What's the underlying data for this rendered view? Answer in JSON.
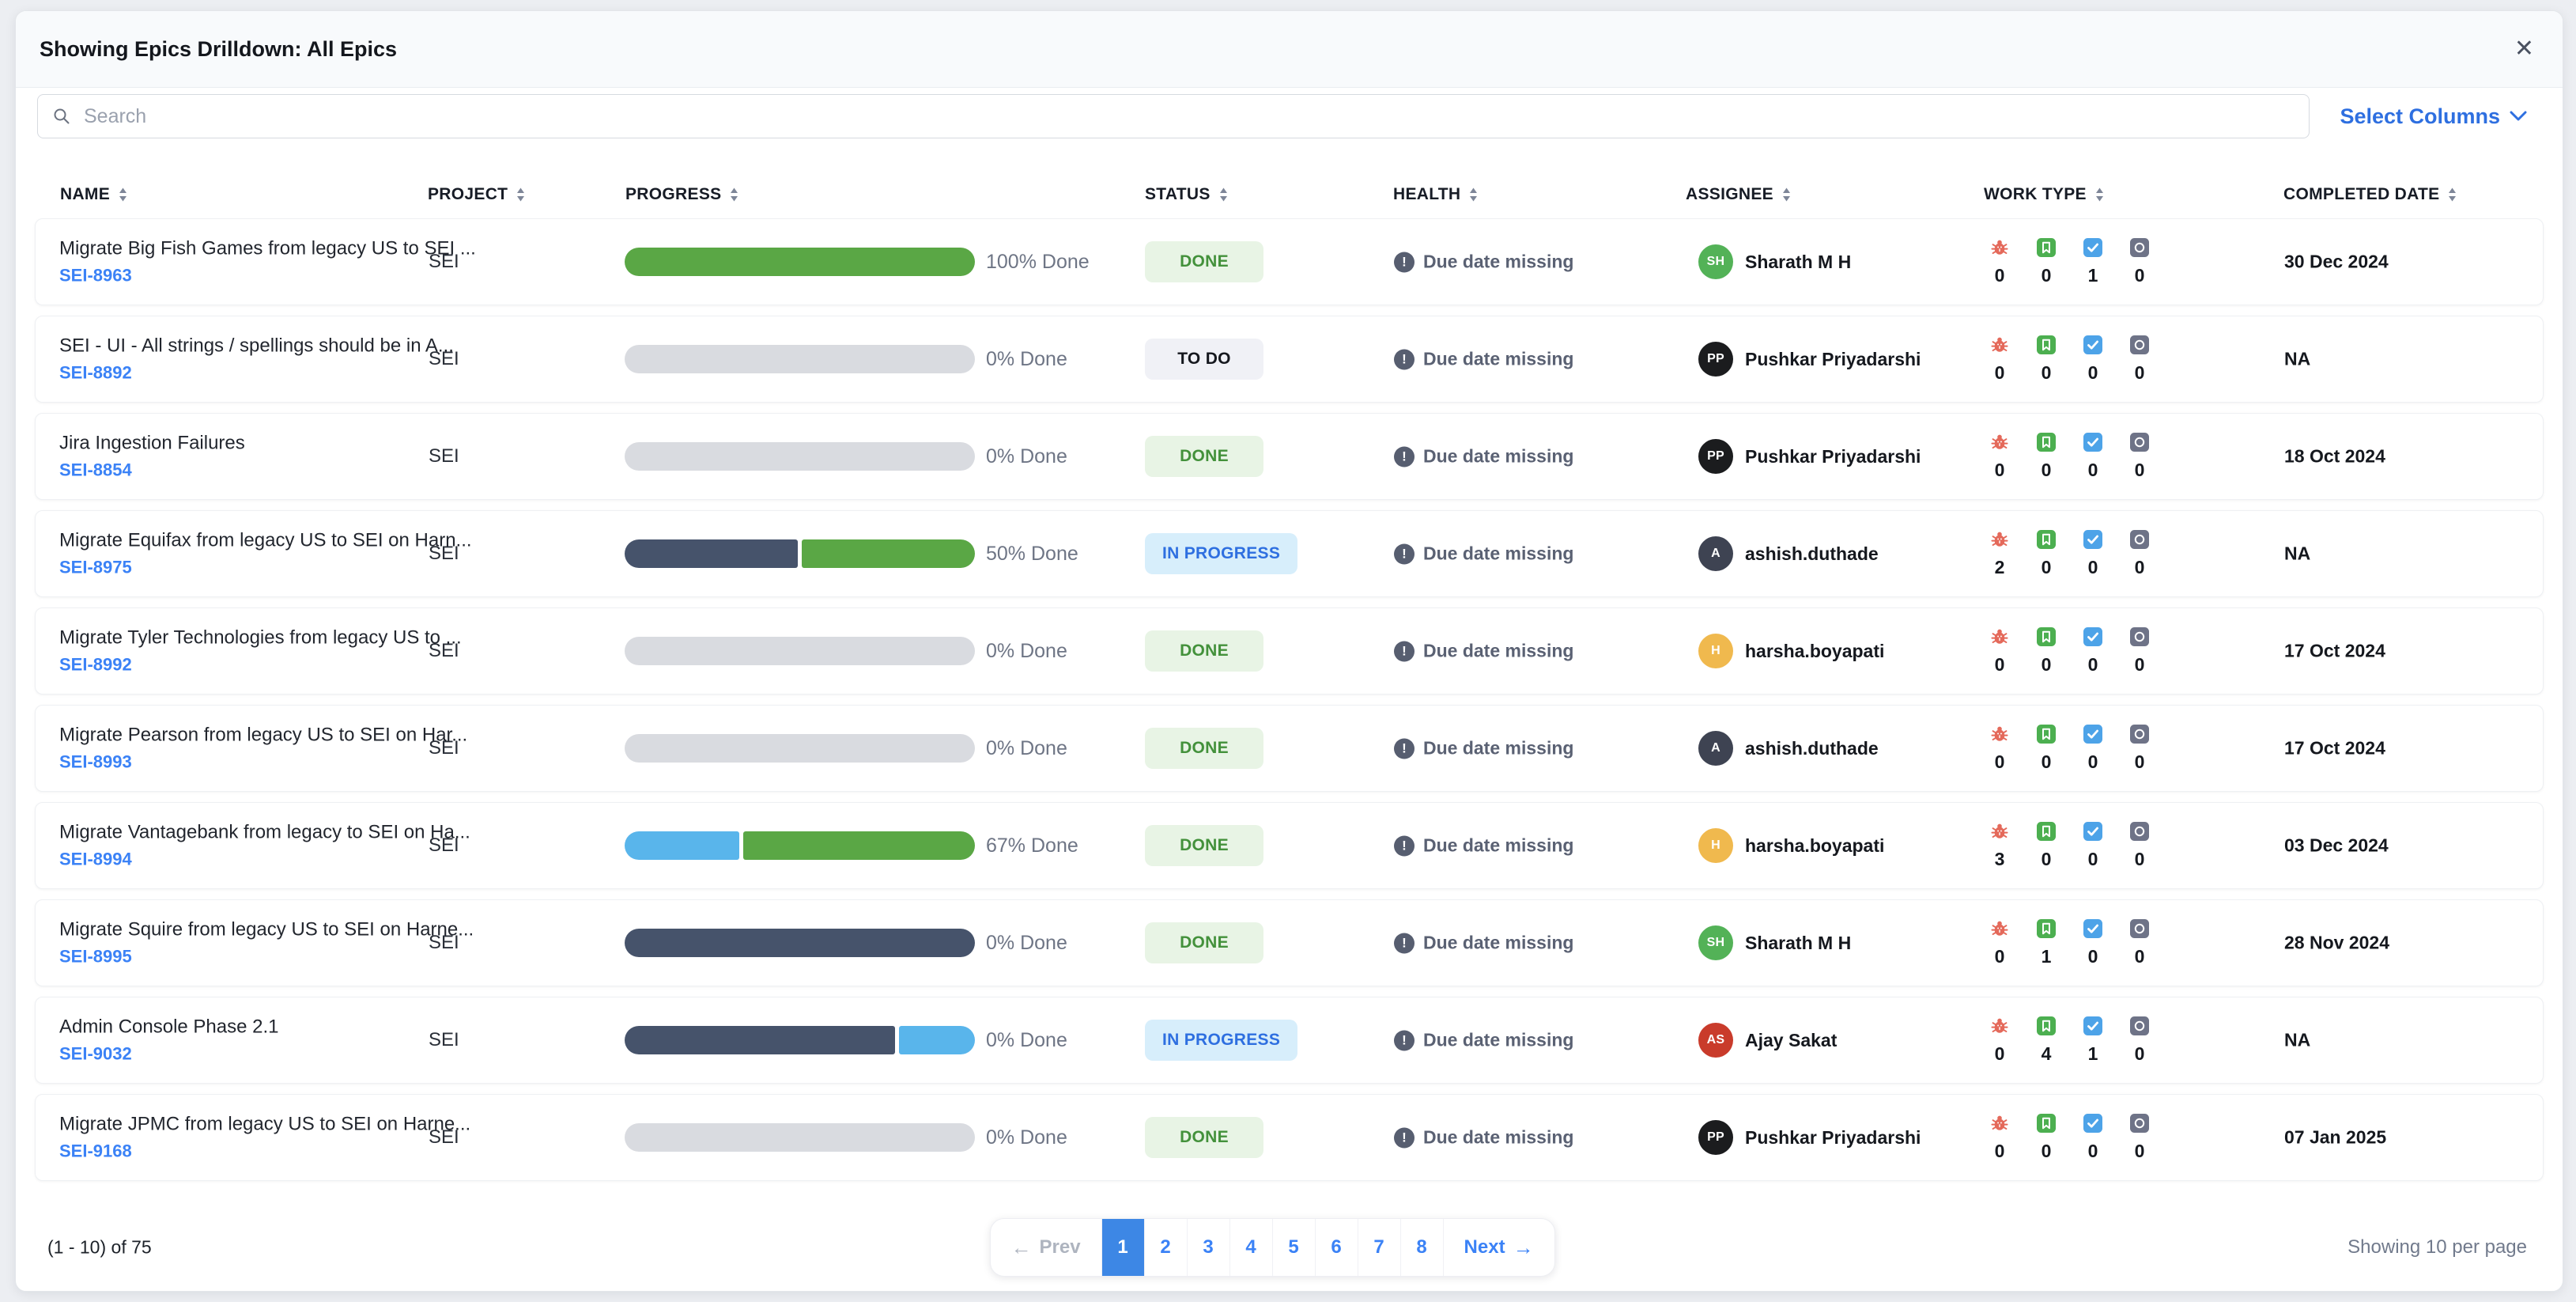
{
  "header": {
    "title": "Showing Epics Drilldown: All Epics",
    "close_glyph": "✕"
  },
  "toolbar": {
    "search_placeholder": "Search",
    "select_columns_label": "Select Columns"
  },
  "columns": [
    {
      "key": "name",
      "label": "NAME"
    },
    {
      "key": "project",
      "label": "PROJECT"
    },
    {
      "key": "progress",
      "label": "PROGRESS"
    },
    {
      "key": "status",
      "label": "STATUS"
    },
    {
      "key": "health",
      "label": "HEALTH"
    },
    {
      "key": "assignee",
      "label": "ASSIGNEE"
    },
    {
      "key": "worktype",
      "label": "WORK TYPE"
    },
    {
      "key": "completed-date",
      "label": "COMPLETED DATE"
    }
  ],
  "work_types": [
    {
      "key": "bug",
      "icon": "bug-icon"
    },
    {
      "key": "story",
      "icon": "story-icon"
    },
    {
      "key": "task",
      "icon": "task-icon"
    },
    {
      "key": "other",
      "icon": "other-icon"
    }
  ],
  "status_styles": {
    "done": {
      "label": "DONE",
      "bg": "#E8F4E5",
      "fg": "#43913B"
    },
    "todo": {
      "label": "TO DO",
      "bg": "#F0F1F6",
      "fg": "#15181E"
    },
    "in_progress": {
      "label": "IN PROGRESS",
      "bg": "#D7EEFB",
      "fg": "#2E6FE0"
    }
  },
  "colors": {
    "progress": {
      "green": "#5AA745",
      "gray": "#D9DBE0",
      "navy": "#46536B",
      "lightblue": "#59B5EB"
    },
    "avatar": {
      "green": "#53B257",
      "black": "#1B1C1E",
      "slate": "#3E4352",
      "yellow": "#F0B94E",
      "red": "#C93B2B"
    }
  },
  "rows": [
    {
      "name": "Migrate Big Fish Games from legacy US to SEI ...",
      "id": "SEI-8963",
      "project": "SEI",
      "progress": {
        "label": "100% Done",
        "segments": [
          {
            "color": "green",
            "pct": 100
          }
        ]
      },
      "status_key": "done",
      "health": "Due date missing",
      "assignee": {
        "initials": "SH",
        "name": "Sharath M H",
        "color": "green"
      },
      "work_counts": [
        0,
        0,
        1,
        0
      ],
      "completed": "30 Dec 2024"
    },
    {
      "name": "SEI - UI - All strings / spellings should be in A...",
      "id": "SEI-8892",
      "project": "SEI",
      "progress": {
        "label": "0% Done",
        "segments": [
          {
            "color": "gray",
            "pct": 100
          }
        ]
      },
      "status_key": "todo",
      "health": "Due date missing",
      "assignee": {
        "initials": "PP",
        "name": "Pushkar Priyadarshi",
        "color": "black"
      },
      "work_counts": [
        0,
        0,
        0,
        0
      ],
      "completed": "NA"
    },
    {
      "name": "Jira Ingestion Failures",
      "id": "SEI-8854",
      "project": "SEI",
      "progress": {
        "label": "0% Done",
        "segments": [
          {
            "color": "gray",
            "pct": 100
          }
        ]
      },
      "status_key": "done",
      "health": "Due date missing",
      "assignee": {
        "initials": "PP",
        "name": "Pushkar Priyadarshi",
        "color": "black"
      },
      "work_counts": [
        0,
        0,
        0,
        0
      ],
      "completed": "18 Oct 2024"
    },
    {
      "name": "Migrate Equifax from legacy US to SEI on Harn...",
      "id": "SEI-8975",
      "project": "SEI",
      "progress": {
        "label": "50% Done",
        "segments": [
          {
            "color": "navy",
            "pct": 50
          },
          {
            "color": "green",
            "pct": 50
          }
        ]
      },
      "status_key": "in_progress",
      "health": "Due date missing",
      "assignee": {
        "initials": "A",
        "name": "ashish.duthade",
        "color": "slate"
      },
      "work_counts": [
        2,
        0,
        0,
        0
      ],
      "completed": "NA"
    },
    {
      "name": "Migrate Tyler Technologies from legacy US to ...",
      "id": "SEI-8992",
      "project": "SEI",
      "progress": {
        "label": "0% Done",
        "segments": [
          {
            "color": "gray",
            "pct": 100
          }
        ]
      },
      "status_key": "done",
      "health": "Due date missing",
      "assignee": {
        "initials": "H",
        "name": "harsha.boyapati",
        "color": "yellow"
      },
      "work_counts": [
        0,
        0,
        0,
        0
      ],
      "completed": "17 Oct 2024"
    },
    {
      "name": "Migrate Pearson from legacy US to SEI on Har...",
      "id": "SEI-8993",
      "project": "SEI",
      "progress": {
        "label": "0% Done",
        "segments": [
          {
            "color": "gray",
            "pct": 100
          }
        ]
      },
      "status_key": "done",
      "health": "Due date missing",
      "assignee": {
        "initials": "A",
        "name": "ashish.duthade",
        "color": "slate"
      },
      "work_counts": [
        0,
        0,
        0,
        0
      ],
      "completed": "17 Oct 2024"
    },
    {
      "name": "Migrate Vantagebank from legacy to SEI on Ha...",
      "id": "SEI-8994",
      "project": "SEI",
      "progress": {
        "label": "67% Done",
        "segments": [
          {
            "color": "lightblue",
            "pct": 33
          },
          {
            "color": "green",
            "pct": 67
          }
        ]
      },
      "status_key": "done",
      "health": "Due date missing",
      "assignee": {
        "initials": "H",
        "name": "harsha.boyapati",
        "color": "yellow"
      },
      "work_counts": [
        3,
        0,
        0,
        0
      ],
      "completed": "03 Dec 2024"
    },
    {
      "name": "Migrate Squire from legacy US to SEI on Harne...",
      "id": "SEI-8995",
      "project": "SEI",
      "progress": {
        "label": "0% Done",
        "segments": [
          {
            "color": "navy",
            "pct": 100
          }
        ]
      },
      "status_key": "done",
      "health": "Due date missing",
      "assignee": {
        "initials": "SH",
        "name": "Sharath M H",
        "color": "green"
      },
      "work_counts": [
        0,
        1,
        0,
        0
      ],
      "completed": "28 Nov 2024"
    },
    {
      "name": "Admin Console Phase 2.1",
      "id": "SEI-9032",
      "project": "SEI",
      "progress": {
        "label": "0% Done",
        "segments": [
          {
            "color": "navy",
            "pct": 78
          },
          {
            "color": "lightblue",
            "pct": 22
          }
        ]
      },
      "status_key": "in_progress",
      "health": "Due date missing",
      "assignee": {
        "initials": "AS",
        "name": "Ajay Sakat",
        "color": "red"
      },
      "work_counts": [
        0,
        4,
        1,
        0
      ],
      "completed": "NA"
    },
    {
      "name": "Migrate JPMC from legacy US to SEI on Harne...",
      "id": "SEI-9168",
      "project": "SEI",
      "progress": {
        "label": "0% Done",
        "segments": [
          {
            "color": "gray",
            "pct": 100
          }
        ]
      },
      "status_key": "done",
      "health": "Due date missing",
      "assignee": {
        "initials": "PP",
        "name": "Pushkar Priyadarshi",
        "color": "black"
      },
      "work_counts": [
        0,
        0,
        0,
        0
      ],
      "completed": "07 Jan 2025"
    }
  ],
  "footer": {
    "range": "(1 - 10) of 75",
    "prev": "Prev",
    "prev_arrow": "←",
    "next": "Next",
    "next_arrow": "→",
    "pages": [
      "1",
      "2",
      "3",
      "4",
      "5",
      "6",
      "7",
      "8"
    ],
    "active_page": "1",
    "per_page": "Showing 10 per page"
  }
}
